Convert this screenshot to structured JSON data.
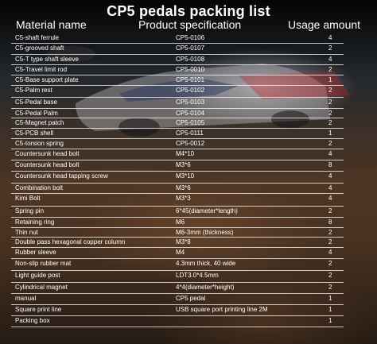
{
  "title": "CP5 pedals packing list",
  "headers": {
    "name": "Material name",
    "spec": "Product specification",
    "usage": "Usage amount"
  },
  "rows": [
    {
      "name": "C5-shaft ferrule",
      "spec": "CP5-0106",
      "usage": "4"
    },
    {
      "name": "C5-grooved shaft",
      "spec": "CP5-0107",
      "usage": "2"
    },
    {
      "name": "C5-T type shaft sleeve",
      "spec": "CP5-0108",
      "usage": "4"
    },
    {
      "name": "C5-Travel limit rod",
      "spec": "CP5-0010",
      "usage": "2"
    },
    {
      "name": "C5-Base support plate",
      "spec": "CP5-0101",
      "usage": "1"
    },
    {
      "name": "C5-Palm rest",
      "spec": "CP5-0102",
      "usage": "2"
    },
    {
      "name": "C5-Pedal base",
      "spec": "CP5-0103",
      "usage": "2"
    },
    {
      "name": "C5-Pedal Palm",
      "spec": "CP5-0104",
      "usage": "2"
    },
    {
      "name": "C5-Magnet patch",
      "spec": "CP5-0105",
      "usage": "2"
    },
    {
      "name": "C5-PCB shell",
      "spec": "CP5-0111",
      "usage": "1"
    },
    {
      "name": "C5-torsion spring",
      "spec": "CP5-0012",
      "usage": "2"
    },
    {
      "name": "Countersunk head bolt",
      "spec": "M4*10",
      "usage": "4"
    },
    {
      "name": "Countersunk head bolt",
      "spec": "M3*6",
      "usage": "8"
    },
    {
      "name": "Countersunk head tapping screw",
      "spec": "M3*10",
      "usage": "4"
    },
    {
      "name": "Combination bolt",
      "spec": "M3*6",
      "usage": "4"
    },
    {
      "name": "Kimi Bolt",
      "spec": "M3*3",
      "usage": "4"
    },
    {
      "name": "Spring pin",
      "spec": "6*45(diameter*length)",
      "usage": "2"
    },
    {
      "name": "Retaining ring",
      "spec": "M6",
      "usage": "8"
    },
    {
      "name": "Thin nut",
      "spec": "M6-3mm (thickness)",
      "usage": "2"
    },
    {
      "name": "Double pass hexagonal copper column",
      "spec": "M3*8",
      "usage": "2"
    },
    {
      "name": "Rubber sleeve",
      "spec": "M4",
      "usage": "4"
    },
    {
      "name": "Non-slip rubber mat",
      "spec": "4.3mm thick, 40 wide",
      "usage": "2"
    },
    {
      "name": "Light guide post",
      "spec": "LDT3.0*4.5mm",
      "usage": "2"
    },
    {
      "name": "Cylindrical magnet",
      "spec": "4*4(diameter*height)",
      "usage": "2"
    },
    {
      "name": "manual",
      "spec": "CP5 pedal",
      "usage": "1"
    },
    {
      "name": "Square print line",
      "spec": "USB square port printing line 2M",
      "usage": "1"
    },
    {
      "name": "Packing box",
      "spec": "",
      "usage": "1"
    }
  ]
}
